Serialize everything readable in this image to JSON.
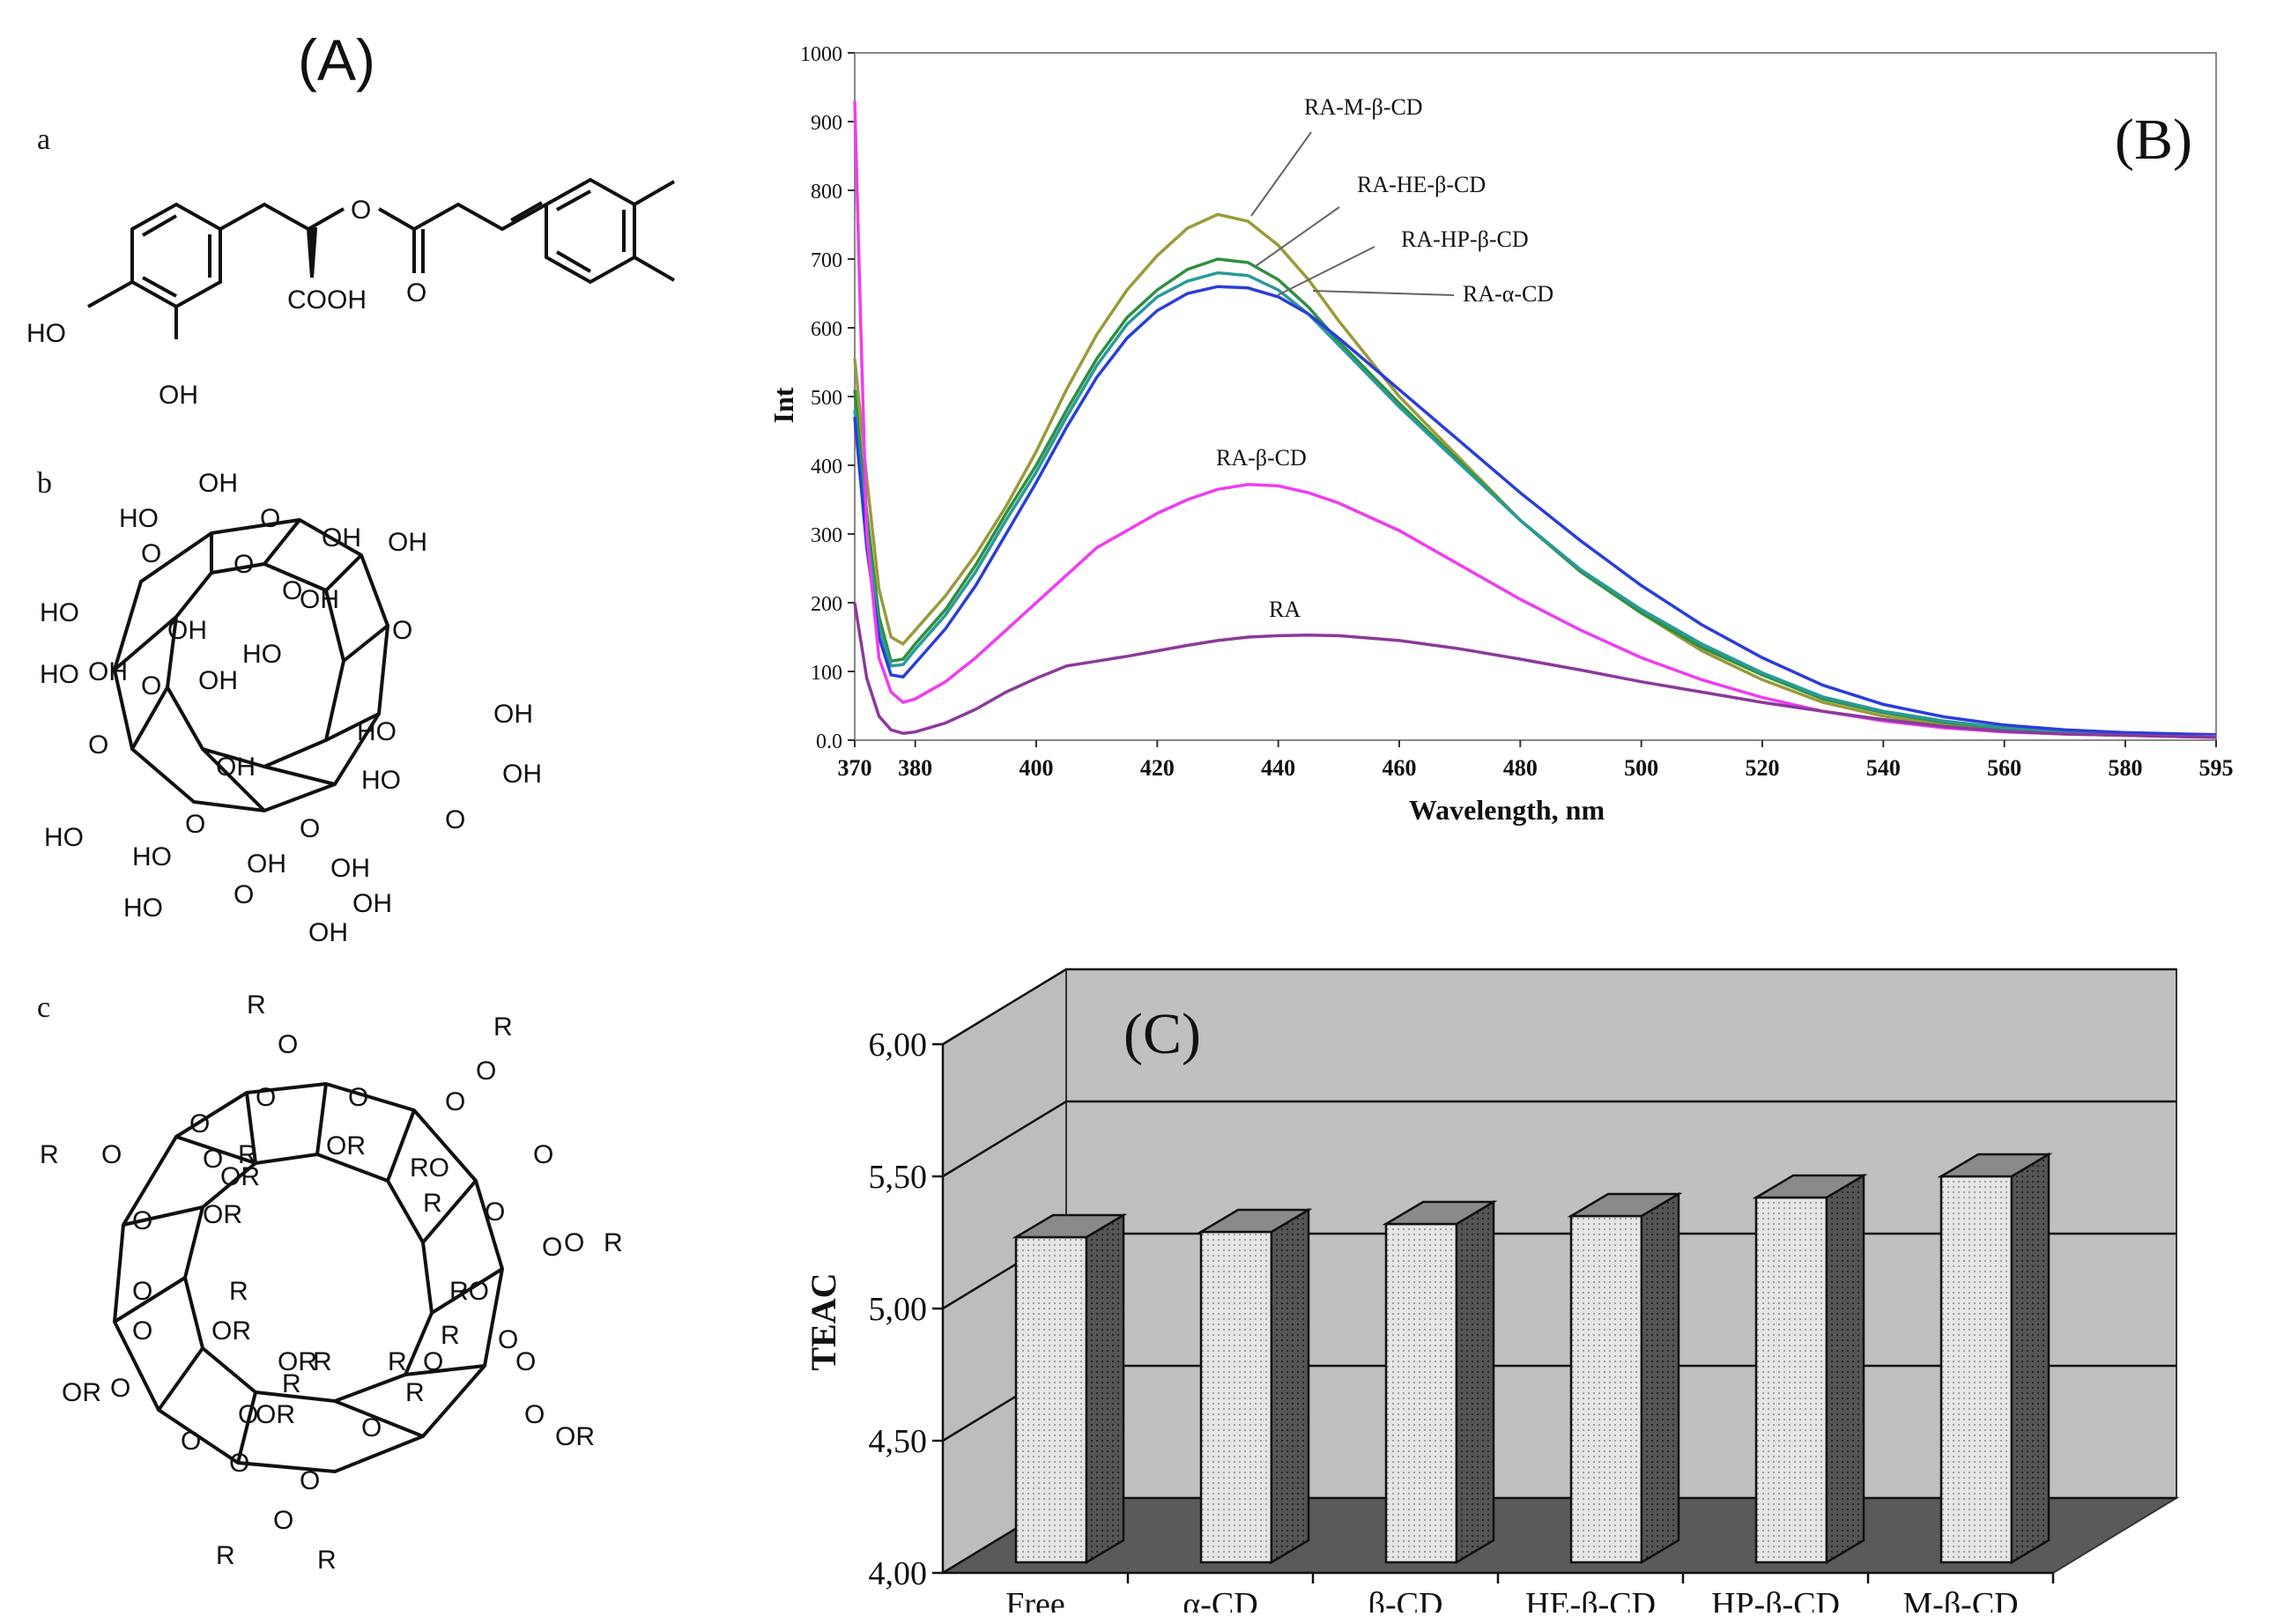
{
  "panel_A": {
    "label": "(A)",
    "sub_a": "a",
    "sub_b": "b",
    "sub_c": "c",
    "a_groups": [
      "O",
      "COOH",
      "O",
      "HO",
      "OH"
    ],
    "b_groups": [
      "OH",
      "HO",
      "O",
      "OH",
      "O",
      "O",
      "OH",
      "HO",
      "OH",
      "OH",
      "HO",
      "O",
      "O",
      "OH",
      "HO",
      "O",
      "OH",
      "HO",
      "OH",
      "O",
      "HO",
      "OH",
      "HO",
      "OH",
      "HO",
      "O",
      "O",
      "OH",
      "HO",
      "OH",
      "O",
      "O",
      "OH",
      "OH"
    ],
    "c_groups": [
      "R",
      "O",
      "R",
      "O",
      "O",
      "O",
      "O",
      "R",
      "O",
      "O",
      "OR",
      "O",
      "OR",
      "R",
      "RO",
      "O",
      "R",
      "O",
      "O",
      "OR",
      "O",
      "R",
      "O",
      "R",
      "O",
      "OR",
      "O",
      "RO",
      "R",
      "O",
      "O",
      "OR",
      "O",
      "R",
      "OR",
      "O",
      "R",
      "O",
      "OR",
      "R",
      "R",
      "O",
      "OR",
      "O",
      "O",
      "O",
      "O",
      "R",
      "O",
      "R"
    ]
  },
  "chart_data": [
    {
      "type": "line",
      "panel_label": "(B)",
      "title": "",
      "xlabel": "Wavelength, nm",
      "ylabel": "Int",
      "xlim": [
        370,
        595
      ],
      "ylim": [
        0,
        1000
      ],
      "x_ticks": [
        370,
        380,
        400,
        420,
        440,
        460,
        480,
        500,
        520,
        540,
        560,
        580,
        595
      ],
      "y_ticks": [
        0,
        100,
        200,
        300,
        400,
        500,
        600,
        700,
        800,
        900,
        1000
      ],
      "y_tick_labels": [
        "0.0",
        "100",
        "200",
        "300",
        "400",
        "500",
        "600",
        "700",
        "800",
        "900",
        "1000"
      ],
      "series": [
        {
          "name": "RA-M-β-CD",
          "color": "#9a9a3a",
          "x": [
            370,
            372,
            374,
            376,
            378,
            380,
            385,
            390,
            395,
            400,
            405,
            410,
            415,
            420,
            425,
            430,
            435,
            440,
            445,
            450,
            460,
            470,
            480,
            490,
            500,
            510,
            520,
            530,
            540,
            550,
            560,
            570,
            580,
            590,
            595
          ],
          "y": [
            555,
            380,
            220,
            150,
            140,
            160,
            210,
            270,
            340,
            420,
            510,
            590,
            655,
            705,
            745,
            765,
            755,
            720,
            670,
            610,
            500,
            410,
            320,
            245,
            185,
            130,
            88,
            55,
            35,
            22,
            15,
            10,
            8,
            6,
            5
          ]
        },
        {
          "name": "RA-HE-β-CD",
          "color": "#2f8f3f",
          "x": [
            370,
            372,
            374,
            376,
            378,
            380,
            385,
            390,
            395,
            400,
            405,
            410,
            415,
            420,
            425,
            430,
            435,
            440,
            445,
            450,
            460,
            470,
            480,
            490,
            500,
            510,
            520,
            530,
            540,
            550,
            560,
            570,
            580,
            590,
            595
          ],
          "y": [
            510,
            330,
            180,
            115,
            118,
            140,
            190,
            255,
            330,
            400,
            480,
            555,
            615,
            655,
            685,
            700,
            695,
            670,
            630,
            580,
            490,
            405,
            320,
            245,
            185,
            135,
            95,
            60,
            40,
            26,
            17,
            12,
            9,
            7,
            6
          ]
        },
        {
          "name": "RA-HP-β-CD",
          "color": "#2a9a9a",
          "x": [
            370,
            372,
            374,
            376,
            378,
            380,
            385,
            390,
            395,
            400,
            405,
            410,
            415,
            420,
            425,
            430,
            435,
            440,
            445,
            450,
            460,
            470,
            480,
            490,
            500,
            510,
            520,
            530,
            540,
            550,
            560,
            570,
            580,
            590,
            595
          ],
          "y": [
            480,
            300,
            165,
            108,
            110,
            132,
            182,
            245,
            320,
            390,
            470,
            545,
            605,
            645,
            668,
            680,
            676,
            655,
            620,
            575,
            485,
            402,
            320,
            248,
            190,
            140,
            98,
            63,
            42,
            28,
            18,
            13,
            10,
            8,
            7
          ]
        },
        {
          "name": "RA-α-CD",
          "color": "#2a3ed8",
          "x": [
            370,
            372,
            374,
            376,
            378,
            380,
            385,
            390,
            395,
            400,
            405,
            410,
            415,
            420,
            425,
            430,
            435,
            440,
            445,
            450,
            460,
            470,
            480,
            490,
            500,
            510,
            520,
            530,
            540,
            550,
            560,
            570,
            580,
            590,
            595
          ],
          "y": [
            470,
            280,
            150,
            95,
            92,
            112,
            162,
            225,
            300,
            375,
            455,
            528,
            585,
            625,
            650,
            660,
            658,
            645,
            620,
            585,
            510,
            435,
            360,
            290,
            225,
            168,
            120,
            80,
            52,
            34,
            22,
            15,
            11,
            9,
            8
          ]
        },
        {
          "name": "RA-β-CD",
          "color": "#f03cf0",
          "x": [
            370,
            371,
            372,
            374,
            376,
            378,
            380,
            385,
            390,
            395,
            400,
            405,
            410,
            415,
            420,
            425,
            430,
            435,
            440,
            445,
            450,
            460,
            470,
            480,
            490,
            500,
            510,
            520,
            530,
            540,
            550,
            560,
            570,
            580,
            590,
            595
          ],
          "y": [
            930,
            600,
            300,
            120,
            70,
            55,
            60,
            85,
            120,
            160,
            200,
            240,
            280,
            305,
            330,
            350,
            365,
            372,
            370,
            360,
            345,
            305,
            255,
            205,
            160,
            120,
            88,
            62,
            42,
            28,
            18,
            12,
            9,
            7,
            5,
            5
          ]
        },
        {
          "name": "RA",
          "color": "#8a3a9a",
          "x": [
            370,
            372,
            374,
            376,
            378,
            380,
            385,
            390,
            395,
            400,
            405,
            410,
            415,
            420,
            425,
            430,
            435,
            440,
            445,
            450,
            460,
            470,
            480,
            490,
            500,
            510,
            520,
            530,
            540,
            550,
            560,
            570,
            580,
            590,
            595
          ],
          "y": [
            200,
            90,
            35,
            15,
            10,
            12,
            25,
            45,
            70,
            90,
            108,
            115,
            122,
            130,
            138,
            145,
            150,
            152,
            153,
            152,
            145,
            133,
            118,
            102,
            85,
            70,
            55,
            42,
            30,
            20,
            13,
            9,
            7,
            5,
            4
          ]
        }
      ],
      "annotations": [
        "RA-M-β-CD",
        "RA-HE-β-CD",
        "RA-HP-β-CD",
        "RA-α-CD",
        "RA-β-CD",
        "RA"
      ]
    },
    {
      "type": "bar",
      "panel_label": "(C)",
      "title": "",
      "xlabel": "",
      "ylabel": "TEAC",
      "ylim": [
        4.0,
        6.0
      ],
      "y_ticks": [
        4.0,
        4.5,
        5.0,
        5.5,
        6.0
      ],
      "y_tick_labels": [
        "4,00",
        "4,50",
        "5,00",
        "5,50",
        "6,00"
      ],
      "categories": [
        "Free",
        "α-CD",
        "β-CD",
        "HE-β-CD",
        "HP-β-CD",
        "M-β-CD"
      ],
      "values": [
        5.23,
        5.25,
        5.28,
        5.31,
        5.38,
        5.46
      ],
      "grid": true,
      "style": "3d"
    }
  ]
}
